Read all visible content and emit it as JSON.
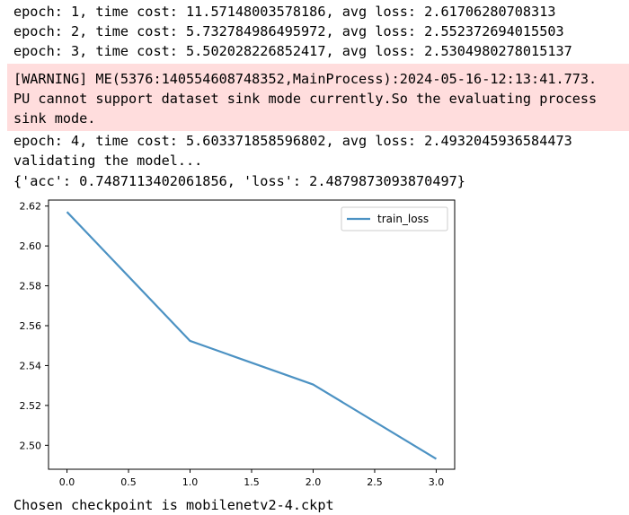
{
  "output_lines": [
    "epoch: 1, time cost: 11.57148003578186, avg loss: 2.61706280708313",
    "epoch: 2, time cost: 5.732784986495972, avg loss: 2.552372694015503",
    "epoch: 3, time cost: 5.502028226852417, avg loss: 2.5304980278015137"
  ],
  "warning": {
    "lines": [
      "[WARNING] ME(5376:140554608748352,MainProcess):2024-05-16-12:13:41.773.",
      "PU cannot support dataset sink mode currently.So the evaluating process",
      "sink mode."
    ],
    "background": "#ffdddd"
  },
  "output_lines_after": [
    "epoch: 4, time cost: 5.603371858596802, avg loss: 2.4932045936584473",
    "validating the model...",
    "{'acc': 0.7487113402061856, 'loss': 2.4879873093870497}"
  ],
  "chart_data": {
    "type": "line",
    "title": "",
    "xlabel": "",
    "ylabel": "",
    "x": [
      0,
      1,
      2,
      3
    ],
    "series": [
      {
        "name": "train_loss",
        "values": [
          2.61706280708313,
          2.552372694015503,
          2.5304980278015137,
          2.4932045936584473
        ],
        "color": "#4c92c3"
      }
    ],
    "xlim": [
      -0.15,
      3.15
    ],
    "ylim": [
      2.488,
      2.623
    ],
    "xticks": [
      0.0,
      0.5,
      1.0,
      1.5,
      2.0,
      2.5,
      3.0
    ],
    "xtick_labels": [
      "0.0",
      "0.5",
      "1.0",
      "1.5",
      "2.0",
      "2.5",
      "3.0"
    ],
    "yticks": [
      2.5,
      2.52,
      2.54,
      2.56,
      2.58,
      2.6,
      2.62
    ],
    "ytick_labels": [
      "2.50",
      "2.52",
      "2.54",
      "2.56",
      "2.58",
      "2.60",
      "2.62"
    ],
    "grid": false,
    "legend": "top-right"
  },
  "final_line": "Chosen checkpoint is mobilenetv2-4.ckpt"
}
